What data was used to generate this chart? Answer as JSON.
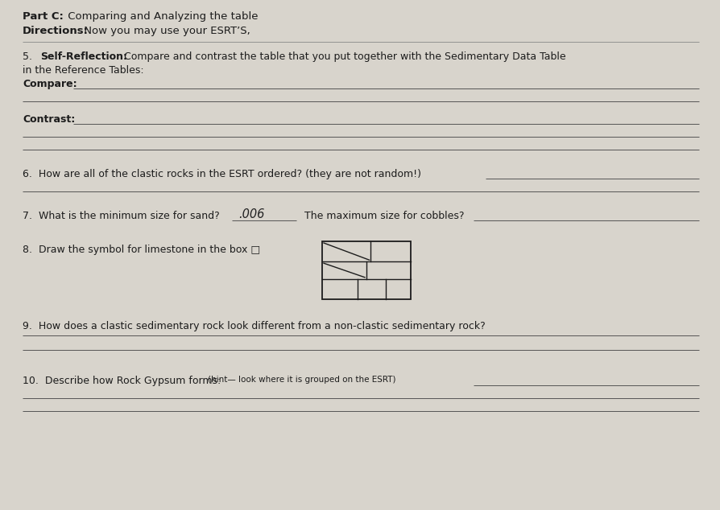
{
  "background_color": "#d8d4cc",
  "title_bold1": "Part C:",
  "title_normal1": "  Comparing and Analyzing the table",
  "title_bold2": "Directions:",
  "title_normal2": "  Now you may use your ESRT’S,",
  "q5_num": "5.",
  "q5_bold": "Self-Reflection:",
  "q5_rest": " Compare and contrast the table that you put together with the Sedimentary Data Table",
  "q5_line2": "in the Reference Tables:",
  "compare_bold": "Compare:",
  "contrast_bold": "Contrast:",
  "q6_text": "6.  How are all of the clastic rocks in the ESRT ordered? (they are not random!)",
  "q7_text": "7.  What is the minimum size for sand?",
  "q7_answer": ".006",
  "q7_text2": "The maximum size for cobbles?",
  "q8_text": "8.  Draw the symbol for limestone in the box □",
  "q9_text": "9.  How does a clastic sedimentary rock look different from a non-clastic sedimentary rock?",
  "q10_main": "10.  Describe how Rock Gypsum forms: ",
  "q10_hint": "(hint— look where it is grouped on the ESRT)",
  "text_color": "#1c1c1c",
  "line_color": "#555555",
  "fs_title": 9.5,
  "fs_body": 9.0
}
